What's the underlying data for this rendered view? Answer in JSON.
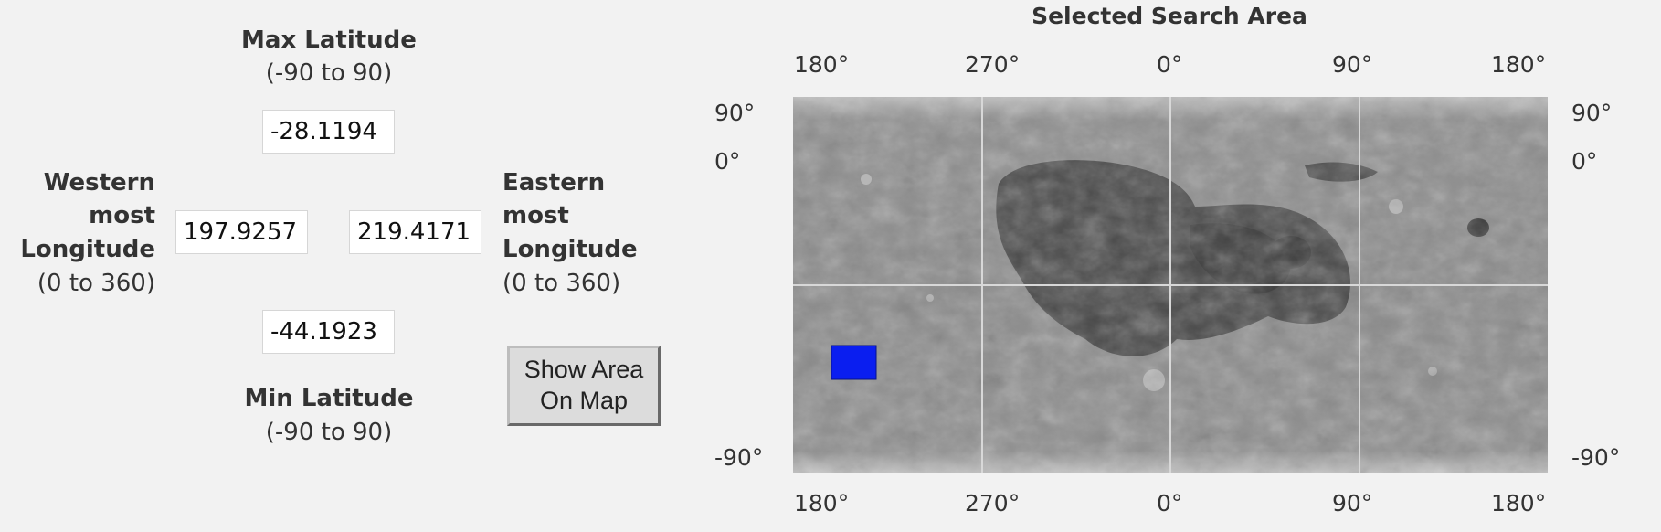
{
  "form": {
    "max_lat_label": "Max Latitude",
    "max_lat_range": "(-90 to 90)",
    "max_lat_value": "-28.1194",
    "west_label_1": "Western",
    "west_label_2": "most",
    "west_label_3": "Longitude",
    "west_range": "(0 to 360)",
    "west_value": "197.9257",
    "east_label_1": "Eastern",
    "east_label_2": "most",
    "east_label_3": "Longitude",
    "east_range": "(0 to 360)",
    "east_value": "219.4171",
    "min_lat_value": "-44.1923",
    "min_lat_label": "Min Latitude",
    "min_lat_range": "(-90 to 90)",
    "show_button_line1": "Show Area",
    "show_button_line2": "On Map"
  },
  "map": {
    "title": "Selected Search Area",
    "top_ticks": [
      "180°",
      "270°",
      "0°",
      "90°",
      "180°"
    ],
    "bottom_ticks": [
      "180°",
      "270°",
      "0°",
      "90°",
      "180°"
    ],
    "left_ticks": [
      "90°",
      "0°",
      "-90°"
    ],
    "right_ticks": [
      "90°",
      "0°",
      "-90°"
    ],
    "selection_color": "#0a1ef0",
    "grid_color": "#d8d8d8"
  }
}
